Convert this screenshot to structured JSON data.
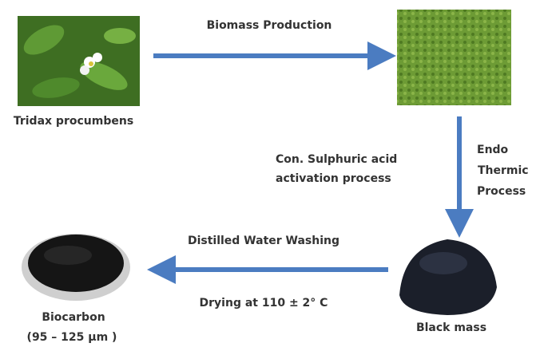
{
  "nodes": [
    {
      "label": "Tridax procumbens"
    },
    {
      "label": "Black mass"
    },
    {
      "lines": [
        "Biocarbon",
        "(95 – 125 µm )"
      ]
    }
  ],
  "edges": [
    {
      "label": "Biomass Production"
    },
    {
      "left_lines": [
        "Con. Sulphuric acid",
        "activation process"
      ],
      "right_lines": [
        "Endo",
        "Thermic",
        "Process"
      ]
    },
    {
      "above": "Distilled Water Washing",
      "below": "Drying at 110 ± 2° C"
    }
  ]
}
